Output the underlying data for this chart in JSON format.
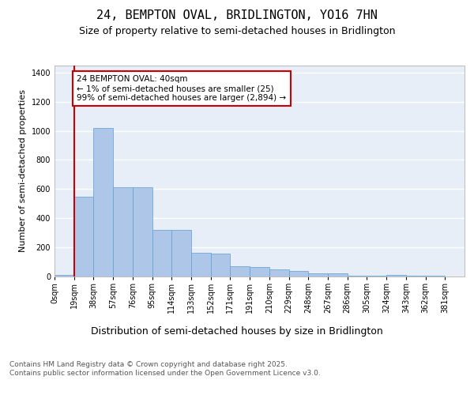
{
  "title": "24, BEMPTON OVAL, BRIDLINGTON, YO16 7HN",
  "subtitle": "Size of property relative to semi-detached houses in Bridlington",
  "xlabel": "Distribution of semi-detached houses by size in Bridlington",
  "ylabel": "Number of semi-detached properties",
  "bin_labels": [
    "0sqm",
    "19sqm",
    "38sqm",
    "57sqm",
    "76sqm",
    "95sqm",
    "114sqm",
    "133sqm",
    "152sqm",
    "171sqm",
    "191sqm",
    "210sqm",
    "229sqm",
    "248sqm",
    "267sqm",
    "286sqm",
    "305sqm",
    "324sqm",
    "343sqm",
    "362sqm",
    "381sqm"
  ],
  "bar_values": [
    10,
    550,
    1020,
    610,
    610,
    320,
    320,
    160,
    155,
    70,
    65,
    50,
    40,
    20,
    20,
    5,
    5,
    10,
    5,
    5,
    2
  ],
  "bar_color": "#aec6e8",
  "bar_edge_color": "#5a9fd4",
  "background_color": "#e8eef8",
  "grid_color": "#ffffff",
  "vline_x": 1,
  "vline_color": "#cc0000",
  "annotation_text": "24 BEMPTON OVAL: 40sqm\n← 1% of semi-detached houses are smaller (25)\n99% of semi-detached houses are larger (2,894) →",
  "annotation_box_color": "#cc0000",
  "ylim": [
    0,
    1450
  ],
  "footer_text": "Contains HM Land Registry data © Crown copyright and database right 2025.\nContains public sector information licensed under the Open Government Licence v3.0.",
  "title_fontsize": 11,
  "subtitle_fontsize": 9,
  "xlabel_fontsize": 9,
  "ylabel_fontsize": 8,
  "tick_fontsize": 7,
  "annotation_fontsize": 7.5,
  "footer_fontsize": 6.5
}
